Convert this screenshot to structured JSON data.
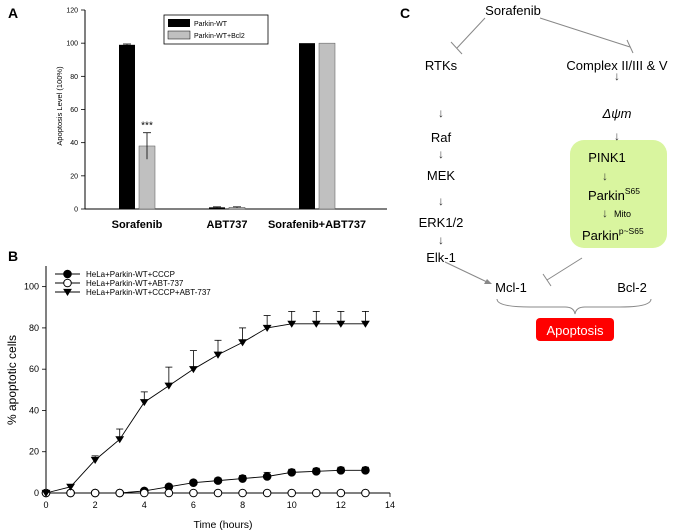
{
  "panels": {
    "a": "A",
    "b": "B",
    "c": "C"
  },
  "chart_data": [
    {
      "type": "bar",
      "panel": "A",
      "ylabel": "Apoptosis Level (100%)",
      "xlabel": "",
      "ylim": [
        0,
        120
      ],
      "yticks": [
        0,
        20,
        40,
        60,
        80,
        100,
        120
      ],
      "categories": [
        "Sorafenib",
        "ABT737",
        "Sorafenib+ABT737"
      ],
      "series": [
        {
          "name": "Parkin-WT",
          "color": "#000000",
          "values": [
            99,
            1,
            100
          ],
          "errors": [
            0.5,
            0.3,
            0
          ]
        },
        {
          "name": "Parkin-WT+Bcl2",
          "color": "#c0c0c0",
          "values": [
            38,
            1,
            100
          ],
          "errors": [
            8,
            0.3,
            0
          ]
        }
      ],
      "annotations": [
        {
          "text": "***",
          "category": "Sorafenib",
          "series": "Parkin-WT+Bcl2"
        }
      ],
      "legend": "top-center",
      "grid": false
    },
    {
      "type": "line",
      "panel": "B",
      "xlabel": "Time (hours)",
      "ylabel": "% apoptotic cells",
      "xlim": [
        0,
        14
      ],
      "ylim": [
        0,
        110
      ],
      "xticks": [
        0,
        2,
        4,
        6,
        8,
        10,
        12,
        14
      ],
      "yticks": [
        0,
        20,
        40,
        60,
        80,
        100
      ],
      "x": [
        0,
        1,
        2,
        3,
        4,
        5,
        6,
        7,
        8,
        9,
        10,
        11,
        12,
        13
      ],
      "series": [
        {
          "name": "HeLa+Parkin-WT+CCCP",
          "marker": "filled-circle",
          "values": [
            0,
            0,
            0,
            0,
            1,
            3,
            5,
            6,
            7,
            8,
            10,
            10.5,
            11,
            11
          ],
          "errors": [
            0,
            0,
            0,
            0,
            0.5,
            0.8,
            1,
            1.2,
            1.5,
            2,
            1.5,
            1.5,
            1.5,
            1.5
          ]
        },
        {
          "name": "HeLa+Parkin-WT+ABT-737",
          "marker": "open-circle",
          "values": [
            0,
            0,
            0,
            0,
            0,
            0,
            0,
            0,
            0,
            0,
            0,
            0,
            0,
            0
          ],
          "errors": [
            0,
            0,
            0,
            0,
            0,
            0,
            0,
            0,
            0,
            0,
            0,
            0,
            0,
            0
          ]
        },
        {
          "name": "HeLa+Parkin-WT+CCCP+ABT-737",
          "marker": "filled-triangle-down",
          "values": [
            0,
            3,
            16,
            26,
            44,
            52,
            60,
            67,
            73,
            80,
            82,
            82,
            82,
            82
          ],
          "errors": [
            0,
            1,
            2,
            5,
            5,
            9,
            9,
            7,
            7,
            6,
            6,
            6,
            6,
            6
          ]
        }
      ],
      "legend": "top-left",
      "grid": false
    }
  ],
  "diagram": {
    "nodes": {
      "sorafenib": "Sorafenib",
      "rtks": "RTKs",
      "complex": "Complex II/III & V",
      "psi": "Δψm",
      "raf": "Raf",
      "mek": "MEK",
      "erk": "ERK1/2",
      "elk": "Elk-1",
      "pink1": "PINK1",
      "parkin_base": "Parkin",
      "parkin_sup": "S65",
      "mito": "Mito",
      "parkin_p_base": "Parkin",
      "parkin_p_sup": "p~S65",
      "mcl1": "Mcl-1",
      "bcl2": "Bcl-2",
      "apoptosis": "Apoptosis"
    },
    "colors": {
      "box": "#d9f59f",
      "apoptosis": "#ff0000",
      "line": "#888888"
    }
  }
}
